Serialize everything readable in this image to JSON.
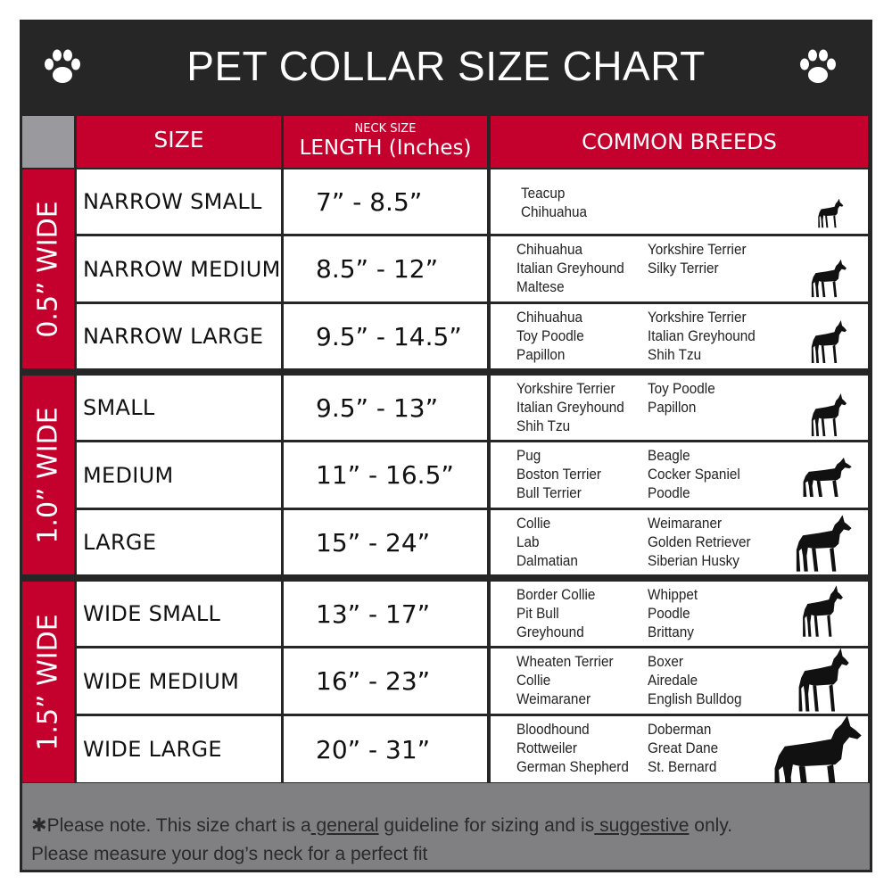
{
  "title": "PET COLLAR SIZE CHART",
  "headers": {
    "size": "SIZE",
    "length_top": "NECK SIZE",
    "length": "LENGTH (Inches)",
    "breeds": "COMMON BREEDS"
  },
  "groups": [
    {
      "label": "0.5” WIDE"
    },
    {
      "label": "1.0” WIDE"
    },
    {
      "label": "1.5” WIDE"
    }
  ],
  "rows": [
    {
      "size": "NARROW SMALL",
      "length": "7” - 8.5”",
      "col1": [
        "Teacup",
        "Chihuahua"
      ],
      "col2": []
    },
    {
      "size": "NARROW MEDIUM",
      "length": "8.5” - 12”",
      "col1": [
        "Chihuahua",
        "Italian Greyhound",
        "Maltese"
      ],
      "col2": [
        "Yorkshire Terrier",
        "Silky Terrier"
      ]
    },
    {
      "size": "NARROW LARGE",
      "length": "9.5” - 14.5”",
      "col1": [
        "Chihuahua",
        "Toy Poodle",
        "Papillon"
      ],
      "col2": [
        "Yorkshire Terrier",
        "Italian Greyhound",
        "Shih Tzu"
      ]
    },
    {
      "size": "SMALL",
      "length": "9.5” - 13”",
      "col1": [
        "Yorkshire Terrier",
        "Italian Greyhound",
        "Shih Tzu"
      ],
      "col2": [
        "Toy Poodle",
        "Papillon"
      ]
    },
    {
      "size": "MEDIUM",
      "length": "11” - 16.5”",
      "col1": [
        "Pug",
        "Boston Terrier",
        "Bull Terrier"
      ],
      "col2": [
        "Beagle",
        "Cocker Spaniel",
        "Poodle"
      ]
    },
    {
      "size": "LARGE",
      "length": "15” - 24”",
      "col1": [
        "Collie",
        "Lab",
        "Dalmatian"
      ],
      "col2": [
        "Weimaraner",
        "Golden Retriever",
        "Siberian Husky"
      ]
    },
    {
      "size": "WIDE SMALL",
      "length": "13” - 17”",
      "col1": [
        "Border Collie",
        "Pit Bull",
        "Greyhound"
      ],
      "col2": [
        "Whippet",
        "Poodle",
        "Brittany"
      ]
    },
    {
      "size": "WIDE MEDIUM",
      "length": "16” - 23”",
      "col1": [
        "Wheaten Terrier",
        "Collie",
        "Weimaraner"
      ],
      "col2": [
        "Boxer",
        "Airedale",
        "English Bulldog"
      ]
    },
    {
      "size": "WIDE LARGE",
      "length": "20” - 31”",
      "col1": [
        "Bloodhound",
        "Rottweiler",
        "German Shepherd"
      ],
      "col2": [
        "Doberman",
        "Great Dane",
        "St. Bernard"
      ]
    }
  ],
  "footer": {
    "line1_a": "✱Please note. This size chart is a",
    "line1_u1": " general",
    "line1_b": " guideline for sizing and is",
    "line1_u2": " suggestive",
    "line1_c": " only.",
    "line2": "Please measure your dog’s neck for a perfect fit"
  },
  "colors": {
    "red": "#c4002d",
    "dark": "#262626",
    "gray": "#808083"
  }
}
